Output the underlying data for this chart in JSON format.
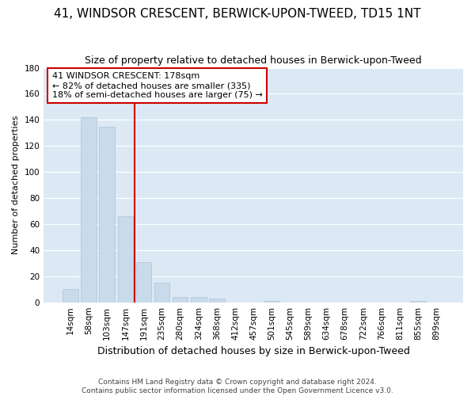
{
  "title": "41, WINDSOR CRESCENT, BERWICK-UPON-TWEED, TD15 1NT",
  "subtitle": "Size of property relative to detached houses in Berwick-upon-Tweed",
  "xlabel": "Distribution of detached houses by size in Berwick-upon-Tweed",
  "ylabel": "Number of detached properties",
  "footer_line1": "Contains HM Land Registry data © Crown copyright and database right 2024.",
  "footer_line2": "Contains public sector information licensed under the Open Government Licence v3.0.",
  "bar_labels": [
    "14sqm",
    "58sqm",
    "103sqm",
    "147sqm",
    "191sqm",
    "235sqm",
    "280sqm",
    "324sqm",
    "368sqm",
    "412sqm",
    "457sqm",
    "501sqm",
    "545sqm",
    "589sqm",
    "634sqm",
    "678sqm",
    "722sqm",
    "766sqm",
    "811sqm",
    "855sqm",
    "899sqm"
  ],
  "bar_values": [
    10,
    142,
    135,
    66,
    31,
    15,
    4,
    4,
    3,
    0,
    0,
    1,
    0,
    0,
    0,
    0,
    0,
    0,
    0,
    1,
    0
  ],
  "bar_color": "#c9daea",
  "bar_edge_color": "#afc4d6",
  "annotation_text_line1": "41 WINDSOR CRESCENT: 178sqm",
  "annotation_text_line2": "← 82% of detached houses are smaller (335)",
  "annotation_text_line3": "18% of semi-detached houses are larger (75) →",
  "annotation_box_facecolor": "#ffffff",
  "annotation_box_edgecolor": "#cc0000",
  "vline_color": "#cc0000",
  "vline_x": 3.5,
  "fig_bg_color": "#ffffff",
  "plot_bg_color": "#dce9f5",
  "grid_color": "#ffffff",
  "ylim": [
    0,
    180
  ],
  "yticks": [
    0,
    20,
    40,
    60,
    80,
    100,
    120,
    140,
    160,
    180
  ],
  "title_fontsize": 11,
  "subtitle_fontsize": 9,
  "ylabel_fontsize": 8,
  "xlabel_fontsize": 9,
  "tick_fontsize": 7.5,
  "footer_fontsize": 6.5
}
